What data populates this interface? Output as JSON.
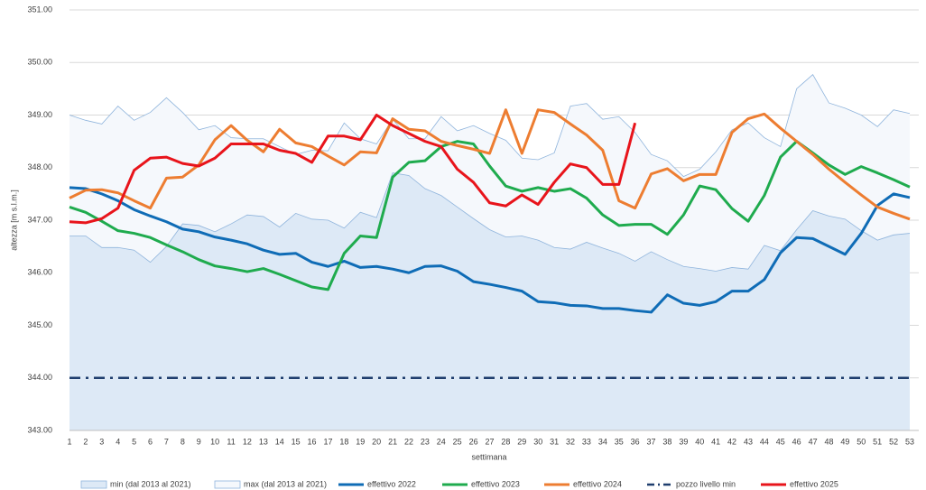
{
  "chart_data": {
    "type": "line",
    "x_label": "settimana",
    "y_label": "altezza [m s.l.m.]",
    "categories": [
      "1",
      "2",
      "3",
      "4",
      "5",
      "6",
      "7",
      "8",
      "9",
      "10",
      "11",
      "12",
      "13",
      "14",
      "15",
      "16",
      "17",
      "18",
      "19",
      "20",
      "21",
      "22",
      "23",
      "24",
      "25",
      "26",
      "27",
      "28",
      "29",
      "30",
      "31",
      "32",
      "33",
      "34",
      "35",
      "36",
      "37",
      "38",
      "39",
      "40",
      "41",
      "42",
      "43",
      "44",
      "45",
      "46",
      "47",
      "48",
      "49",
      "50",
      "51",
      "52",
      "53"
    ],
    "ylim": [
      343,
      351
    ],
    "yticks": [
      {
        "value": 343,
        "label": "343.00"
      },
      {
        "value": 344,
        "label": "344.00"
      },
      {
        "value": 345,
        "label": "345.00"
      },
      {
        "value": 346,
        "label": "346.00"
      },
      {
        "value": 347,
        "label": "347.00"
      },
      {
        "value": 348,
        "label": "348.00"
      },
      {
        "value": 349,
        "label": "349.00"
      },
      {
        "value": 350,
        "label": "350.00"
      },
      {
        "value": 351,
        "label": "351.00"
      }
    ],
    "grid": true,
    "legend": "bottom",
    "series": [
      {
        "name": "min (dal 2013 al 2021)",
        "style": "area",
        "color": "#8fb4dc",
        "fill": "#dde9f6",
        "values": [
          346.7,
          346.7,
          346.48,
          346.48,
          346.43,
          346.2,
          346.5,
          346.93,
          346.9,
          346.78,
          346.93,
          347.1,
          347.07,
          346.87,
          347.13,
          347.02,
          347.0,
          346.85,
          347.15,
          347.05,
          347.9,
          347.85,
          347.6,
          347.47,
          347.25,
          347.03,
          346.82,
          346.68,
          346.7,
          346.62,
          346.48,
          346.45,
          346.58,
          346.47,
          346.37,
          346.22,
          346.4,
          346.25,
          346.12,
          346.08,
          346.03,
          346.1,
          346.07,
          346.52,
          346.42,
          346.82,
          347.18,
          347.08,
          347.02,
          346.8,
          346.62,
          346.72,
          346.75
        ]
      },
      {
        "name": "max (dal 2013 al 2021)",
        "style": "area",
        "color": "#8fb4dc",
        "fill": "#f5f8fc",
        "values": [
          349.0,
          348.9,
          348.83,
          349.17,
          348.9,
          349.05,
          349.33,
          349.05,
          348.72,
          348.8,
          348.57,
          348.55,
          348.55,
          348.4,
          348.25,
          348.33,
          348.32,
          348.85,
          348.55,
          348.45,
          348.92,
          348.55,
          348.55,
          348.97,
          348.7,
          348.8,
          348.65,
          348.52,
          348.18,
          348.15,
          348.28,
          349.17,
          349.22,
          348.92,
          348.97,
          348.67,
          348.25,
          348.13,
          347.83,
          347.97,
          348.3,
          348.72,
          348.85,
          348.57,
          348.4,
          349.5,
          349.77,
          349.23,
          349.13,
          349.0,
          348.78,
          349.1,
          349.03
        ]
      },
      {
        "name": "effettivo 2022",
        "style": "line",
        "color": "#0f6cb6",
        "values": [
          347.62,
          347.6,
          347.5,
          347.37,
          347.2,
          347.08,
          346.97,
          346.83,
          346.78,
          346.68,
          346.62,
          346.55,
          346.43,
          346.35,
          346.37,
          346.2,
          346.12,
          346.22,
          346.1,
          346.12,
          346.07,
          346.0,
          346.12,
          346.13,
          346.03,
          345.83,
          345.78,
          345.72,
          345.65,
          345.45,
          345.43,
          345.38,
          345.37,
          345.32,
          345.32,
          345.28,
          345.25,
          345.58,
          345.42,
          345.38,
          345.45,
          345.65,
          345.65,
          345.87,
          346.38,
          346.67,
          346.65,
          346.5,
          346.35,
          346.75,
          347.28,
          347.5,
          347.43
        ]
      },
      {
        "name": "effettivo 2023",
        "style": "line",
        "color": "#1fab4e",
        "values": [
          347.25,
          347.15,
          346.98,
          346.8,
          346.75,
          346.67,
          346.53,
          346.4,
          346.25,
          346.13,
          346.08,
          346.02,
          346.08,
          345.97,
          345.85,
          345.73,
          345.68,
          346.37,
          346.7,
          346.67,
          347.82,
          348.1,
          348.13,
          348.4,
          348.5,
          348.45,
          348.03,
          347.65,
          347.55,
          347.62,
          347.55,
          347.6,
          347.42,
          347.1,
          346.9,
          346.92,
          346.92,
          346.73,
          347.1,
          347.65,
          347.58,
          347.22,
          346.98,
          347.47,
          348.2,
          348.5,
          348.28,
          348.05,
          347.87,
          348.02,
          347.9,
          347.77,
          347.63
        ]
      },
      {
        "name": "effettivo 2024",
        "style": "line",
        "color": "#ed7d31",
        "values": [
          347.42,
          347.57,
          347.58,
          347.52,
          347.37,
          347.23,
          347.8,
          347.82,
          348.05,
          348.53,
          348.8,
          348.52,
          348.3,
          348.73,
          348.47,
          348.4,
          348.22,
          348.05,
          348.3,
          348.28,
          348.93,
          348.73,
          348.7,
          348.5,
          348.42,
          348.35,
          348.27,
          349.1,
          348.27,
          349.1,
          349.05,
          348.83,
          348.62,
          348.33,
          347.37,
          347.23,
          347.88,
          347.98,
          347.75,
          347.87,
          347.87,
          348.67,
          348.93,
          349.02,
          348.75,
          348.5,
          348.25,
          347.97,
          347.72,
          347.48,
          347.25,
          347.13,
          347.02
        ]
      },
      {
        "name": "pozzo livello min",
        "style": "dashdot",
        "color": "#1f3e6e",
        "values": [
          344,
          344,
          344,
          344,
          344,
          344,
          344,
          344,
          344,
          344,
          344,
          344,
          344,
          344,
          344,
          344,
          344,
          344,
          344,
          344,
          344,
          344,
          344,
          344,
          344,
          344,
          344,
          344,
          344,
          344,
          344,
          344,
          344,
          344,
          344,
          344,
          344,
          344,
          344,
          344,
          344,
          344,
          344,
          344,
          344,
          344,
          344,
          344,
          344,
          344,
          344,
          344,
          344
        ]
      },
      {
        "name": "effettivo 2025",
        "style": "line",
        "color": "#e8141b",
        "values": [
          346.97,
          346.95,
          347.03,
          347.23,
          347.95,
          348.18,
          348.2,
          348.08,
          348.03,
          348.18,
          348.45,
          348.45,
          348.45,
          348.33,
          348.27,
          348.1,
          348.6,
          348.6,
          348.53,
          349.0,
          348.8,
          348.65,
          348.5,
          348.4,
          347.97,
          347.72,
          347.33,
          347.27,
          347.48,
          347.3,
          347.72,
          348.07,
          348.0,
          347.68,
          347.68,
          348.85,
          null,
          null,
          null,
          null,
          null,
          null,
          null,
          null,
          null,
          null,
          null,
          null,
          null,
          null,
          null,
          null,
          null
        ]
      }
    ]
  }
}
